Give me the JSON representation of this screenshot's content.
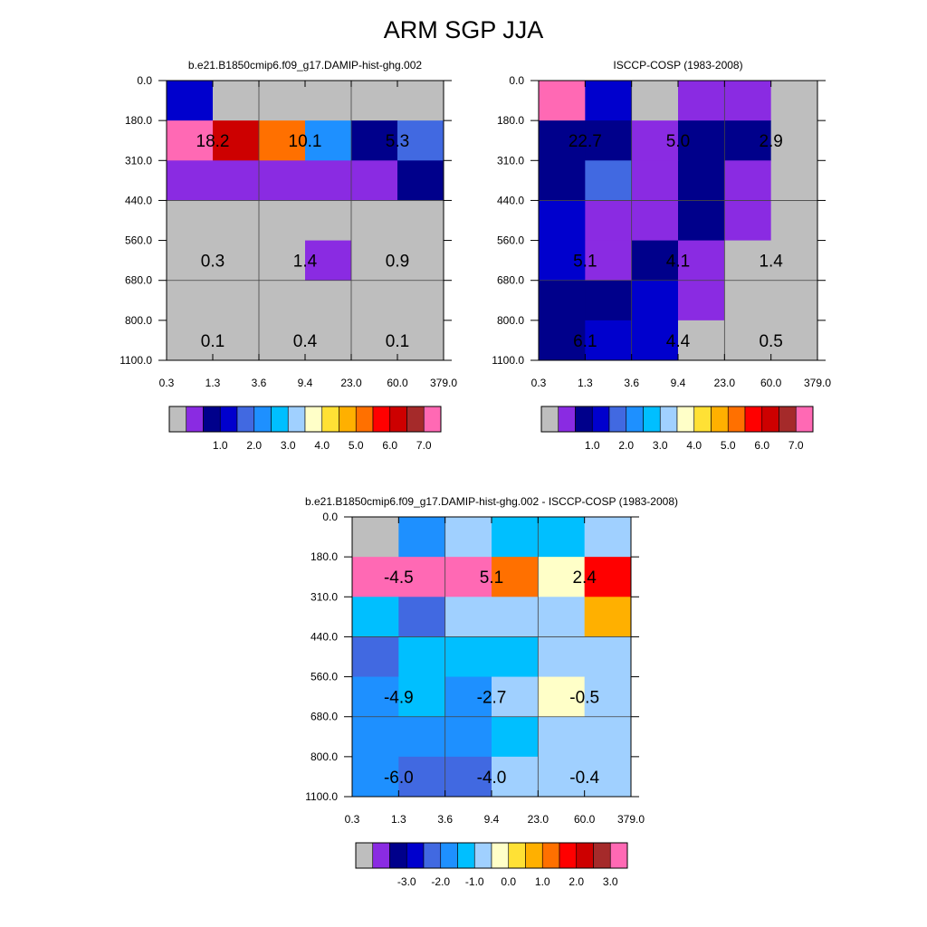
{
  "title": "ARM SGP JJA",
  "colors": {
    "model_palette": [
      "#bebebe",
      "#8a2be2",
      "#00008b",
      "#0000cd",
      "#4169e1",
      "#1e90ff",
      "#00bfff",
      "#a0d0ff",
      "#ffffc8",
      "#ffe135",
      "#ffb000",
      "#ff7000",
      "#ff0000",
      "#cd0000",
      "#a52a2a",
      "#ff69b4"
    ],
    "diff_palette": [
      "#bebebe",
      "#8a2be2",
      "#00008b",
      "#0000cd",
      "#4169e1",
      "#1e90ff",
      "#00bfff",
      "#a0d0ff",
      "#ffffc8",
      "#ffe135",
      "#ffb000",
      "#ff7000",
      "#ff0000",
      "#cd0000",
      "#a52a2a",
      "#ff69b4"
    ]
  },
  "chart_data": [
    {
      "type": "heatmap",
      "title": "b.e21.B1850cmip6.f09_g17.DAMIP-hist-ghg.002",
      "x_ticks": [
        "0.3",
        "1.3",
        "3.6",
        "9.4",
        "23.0",
        "60.0",
        "379.0"
      ],
      "y_ticks": [
        "0.0",
        "180.0",
        "310.0",
        "440.0",
        "560.0",
        "680.0",
        "800.0",
        "1100.0"
      ],
      "grid": true,
      "colorbar": {
        "labels": [
          "1.0",
          "2.0",
          "3.0",
          "4.0",
          "5.0",
          "6.0",
          "7.0"
        ]
      },
      "cells": [
        [
          3,
          0,
          0,
          0,
          0,
          0
        ],
        [
          15,
          13,
          11,
          5,
          2,
          4
        ],
        [
          1,
          1,
          1,
          1,
          1,
          2
        ],
        [
          0,
          0,
          0,
          0,
          0,
          0
        ],
        [
          0,
          0,
          0,
          1,
          0,
          0
        ],
        [
          0,
          0,
          0,
          0,
          0,
          0
        ],
        [
          0,
          0,
          0,
          0,
          0,
          0
        ]
      ],
      "annotations": [
        {
          "row": 1,
          "col": 0,
          "text": "18.2"
        },
        {
          "row": 1,
          "col": 2,
          "text": "10.1"
        },
        {
          "row": 1,
          "col": 4,
          "text": "5.3"
        },
        {
          "row": 4,
          "col": 0,
          "text": "0.3"
        },
        {
          "row": 4,
          "col": 2,
          "text": "1.4"
        },
        {
          "row": 4,
          "col": 4,
          "text": "0.9"
        },
        {
          "row": 6,
          "col": 0,
          "text": "0.1"
        },
        {
          "row": 6,
          "col": 2,
          "text": "0.4"
        },
        {
          "row": 6,
          "col": 4,
          "text": "0.1"
        }
      ]
    },
    {
      "type": "heatmap",
      "title": "ISCCP-COSP (1983-2008)",
      "x_ticks": [
        "0.3",
        "1.3",
        "3.6",
        "9.4",
        "23.0",
        "60.0",
        "379.0"
      ],
      "y_ticks": [
        "0.0",
        "180.0",
        "310.0",
        "440.0",
        "560.0",
        "680.0",
        "800.0",
        "1100.0"
      ],
      "grid": true,
      "colorbar": {
        "labels": [
          "1.0",
          "2.0",
          "3.0",
          "4.0",
          "5.0",
          "6.0",
          "7.0"
        ]
      },
      "cells": [
        [
          15,
          3,
          0,
          1,
          1,
          0
        ],
        [
          2,
          2,
          1,
          2,
          2,
          0
        ],
        [
          2,
          4,
          1,
          2,
          1,
          0
        ],
        [
          3,
          1,
          1,
          2,
          1,
          0
        ],
        [
          3,
          1,
          2,
          1,
          0,
          0
        ],
        [
          2,
          2,
          3,
          1,
          0,
          0
        ],
        [
          2,
          3,
          3,
          0,
          0,
          0
        ]
      ],
      "annotations": [
        {
          "row": 1,
          "col": 0,
          "text": "22.7"
        },
        {
          "row": 1,
          "col": 2,
          "text": "5.0"
        },
        {
          "row": 1,
          "col": 4,
          "text": "2.9"
        },
        {
          "row": 4,
          "col": 0,
          "text": "5.1"
        },
        {
          "row": 4,
          "col": 2,
          "text": "4.1"
        },
        {
          "row": 4,
          "col": 4,
          "text": "1.4"
        },
        {
          "row": 6,
          "col": 0,
          "text": "6.1"
        },
        {
          "row": 6,
          "col": 2,
          "text": "4.4"
        },
        {
          "row": 6,
          "col": 4,
          "text": "0.5"
        }
      ]
    },
    {
      "type": "heatmap",
      "title": "b.e21.B1850cmip6.f09_g17.DAMIP-hist-ghg.002 - ISCCP-COSP (1983-2008)",
      "x_ticks": [
        "0.3",
        "1.3",
        "3.6",
        "9.4",
        "23.0",
        "60.0",
        "379.0"
      ],
      "y_ticks": [
        "0.0",
        "180.0",
        "310.0",
        "440.0",
        "560.0",
        "680.0",
        "800.0",
        "1100.0"
      ],
      "grid": true,
      "colorbar": {
        "labels": [
          "-3.0",
          "-2.0",
          "-1.0",
          "0.0",
          "1.0",
          "2.0",
          "3.0"
        ]
      },
      "cells": [
        [
          0,
          5,
          7,
          6,
          6,
          7
        ],
        [
          15,
          15,
          15,
          11,
          8,
          12
        ],
        [
          6,
          4,
          7,
          7,
          7,
          10
        ],
        [
          4,
          6,
          6,
          6,
          7,
          7
        ],
        [
          5,
          6,
          5,
          7,
          8,
          7
        ],
        [
          5,
          5,
          5,
          6,
          7,
          7
        ],
        [
          5,
          4,
          4,
          7,
          7,
          7
        ]
      ],
      "annotations": [
        {
          "row": 1,
          "col": 0,
          "text": "-4.5"
        },
        {
          "row": 1,
          "col": 2,
          "text": "5.1"
        },
        {
          "row": 1,
          "col": 4,
          "text": "2.4"
        },
        {
          "row": 4,
          "col": 0,
          "text": "-4.9"
        },
        {
          "row": 4,
          "col": 2,
          "text": "-2.7"
        },
        {
          "row": 4,
          "col": 4,
          "text": "-0.5"
        },
        {
          "row": 6,
          "col": 0,
          "text": "-6.0"
        },
        {
          "row": 6,
          "col": 2,
          "text": "-4.0"
        },
        {
          "row": 6,
          "col": 4,
          "text": "-0.4"
        }
      ]
    }
  ]
}
